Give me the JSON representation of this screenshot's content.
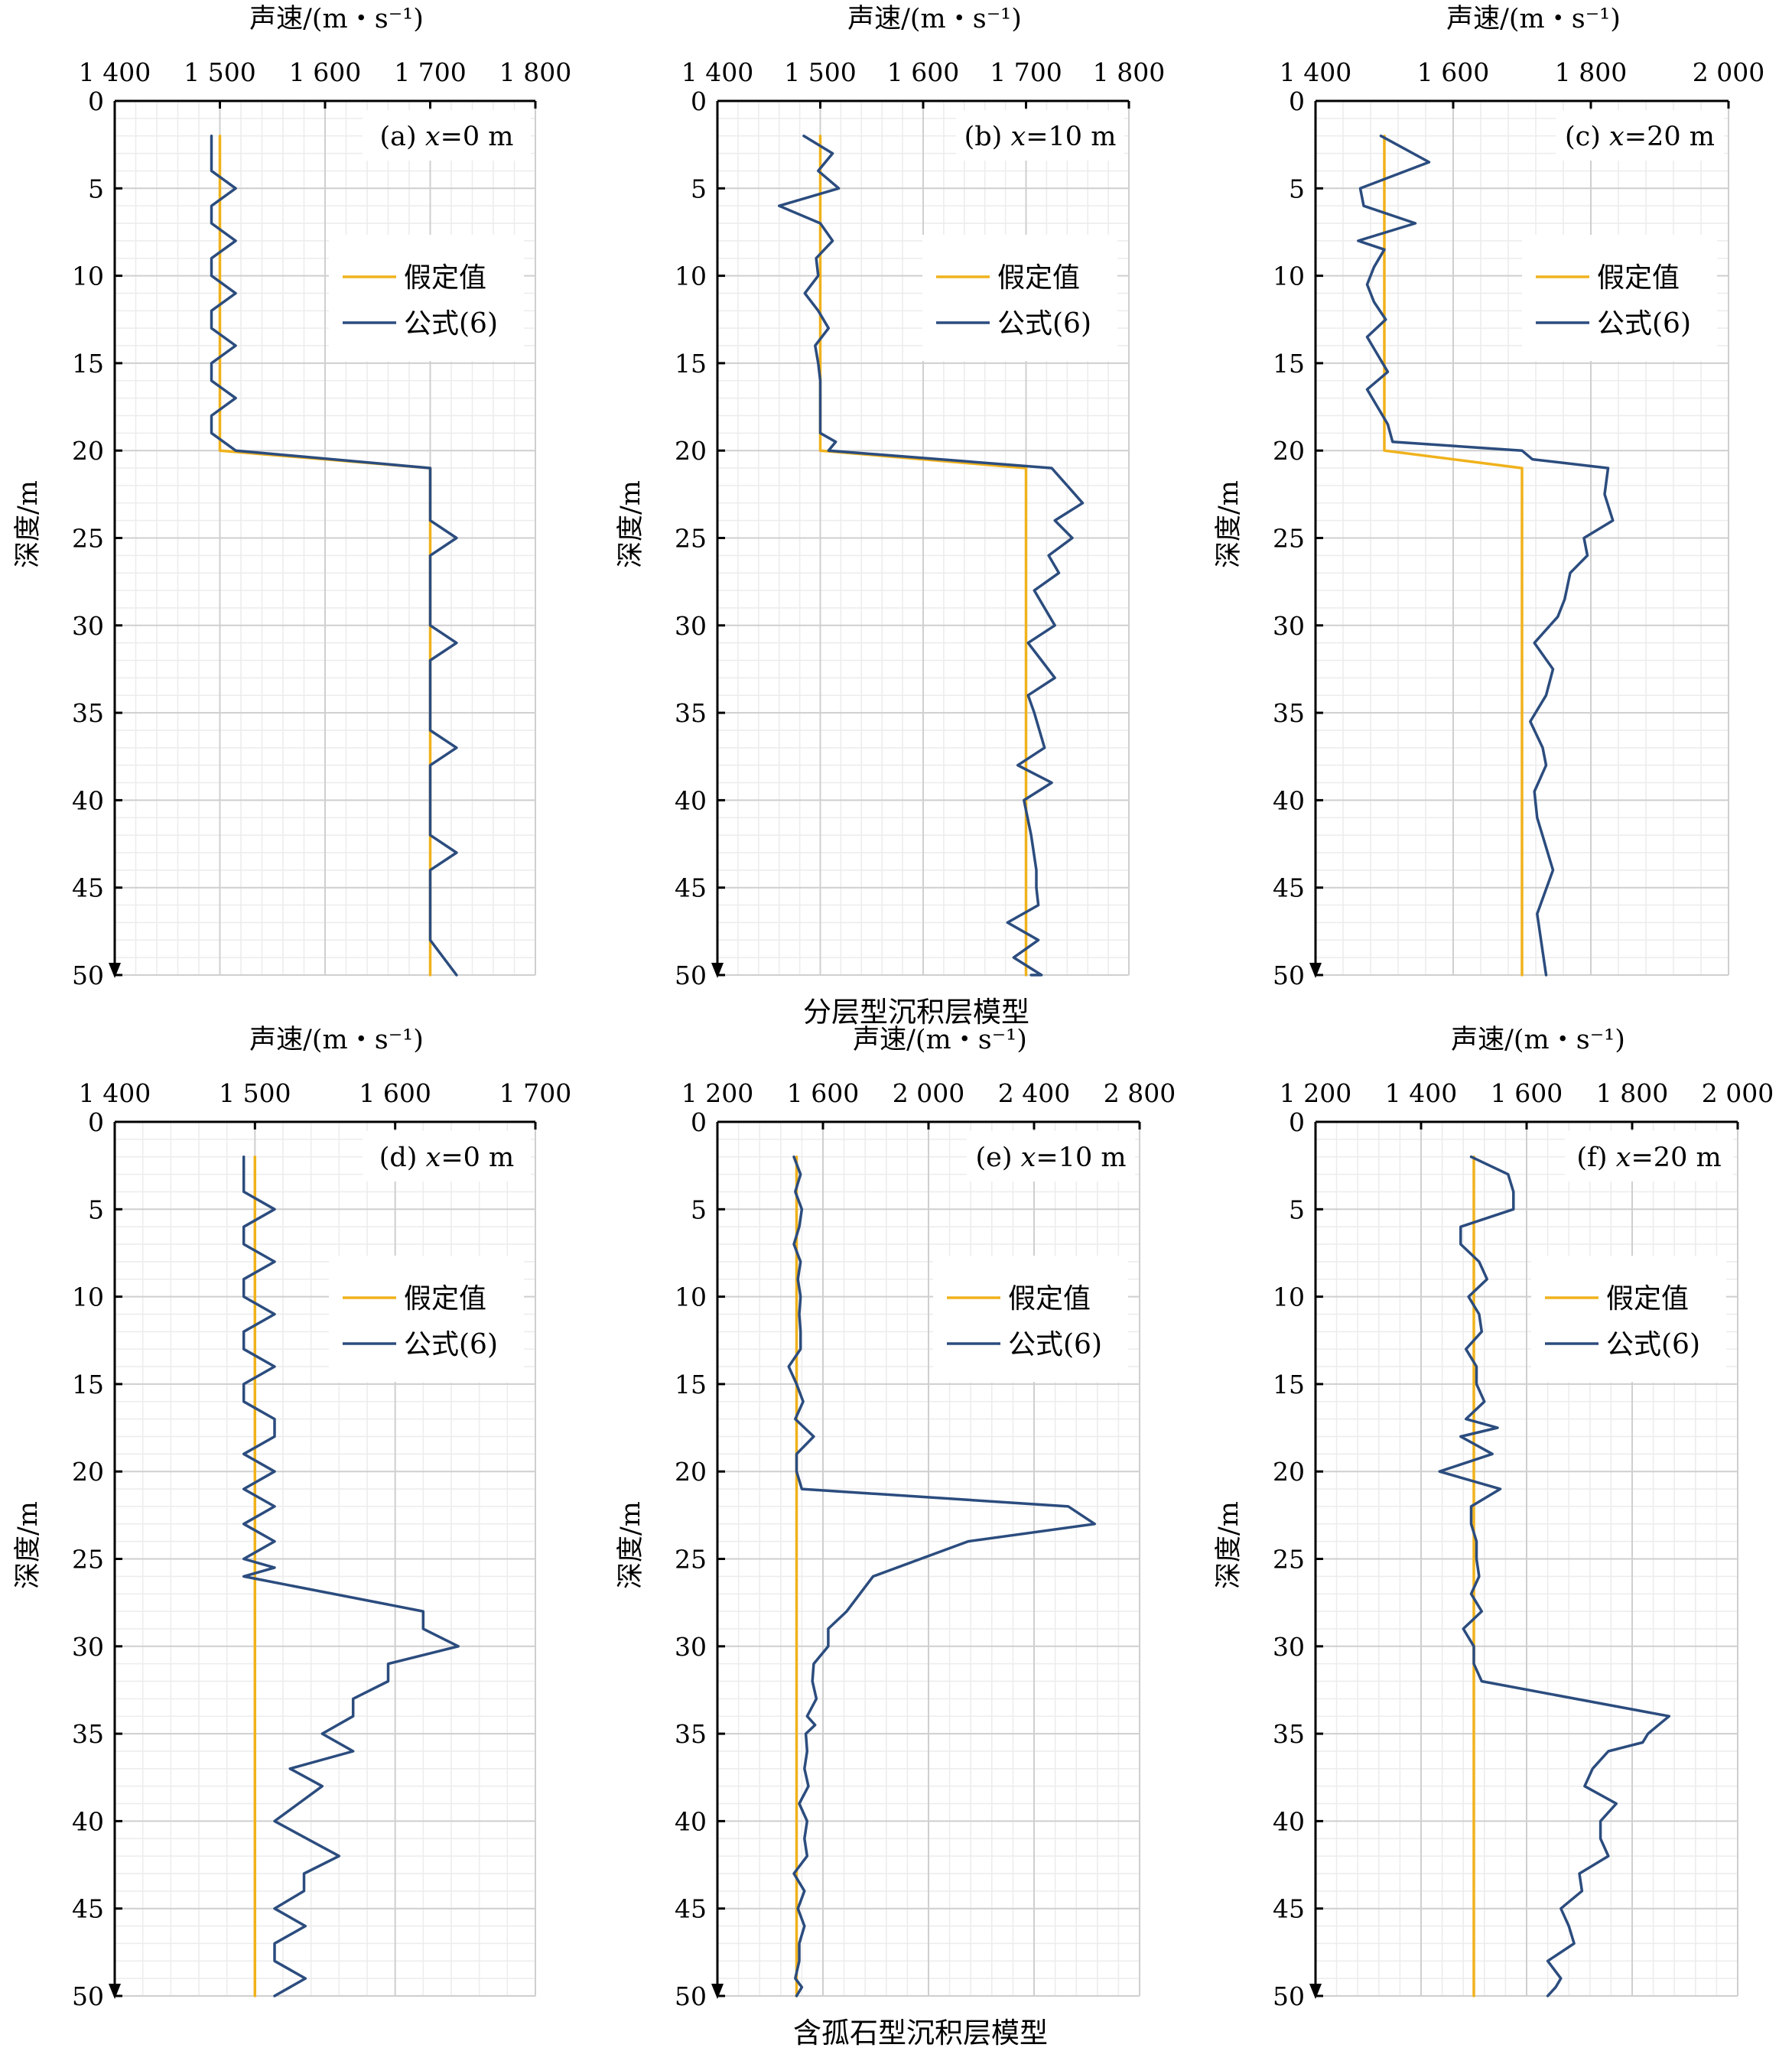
{
  "captions": {
    "top": "分层型沉积层模型",
    "bottom": "含孤石型沉积层模型"
  },
  "colors": {
    "assumed": "#f0b21c",
    "formula": "#2b4c7e",
    "grid_major": "#cfcfcf",
    "grid_minor": "#ececec",
    "axis": "#000000"
  },
  "chart_data": [
    {
      "type": "line",
      "panel_label": "(a)",
      "panel_var": "x",
      "panel_value": "=0 m",
      "xlabel": "声速/(m・s⁻¹)",
      "ylabel": "深度/m",
      "xlim": [
        1400,
        1800
      ],
      "xticks": [
        1400,
        1500,
        1600,
        1700,
        1800
      ],
      "xtick_labels": [
        "1 400",
        "1 500",
        "1 600",
        "1 700",
        "1 800"
      ],
      "ylim": [
        0,
        50
      ],
      "yticks": [
        0,
        5,
        10,
        15,
        20,
        25,
        30,
        35,
        40,
        45,
        50
      ],
      "ytick_labels": [
        "0",
        "5",
        "10",
        "15",
        "20",
        "25",
        "30",
        "35",
        "40",
        "45",
        "50"
      ],
      "grid": true,
      "legend_position": "upper-right",
      "series": [
        {
          "name": "假定值",
          "key": "assumed",
          "x": [
            1500,
            1500,
            1700,
            1700
          ],
          "y": [
            2,
            20,
            21,
            50
          ]
        },
        {
          "name": "公式(6)",
          "key": "formula",
          "x": [
            1492,
            1492,
            1492,
            1515,
            1492,
            1492,
            1515,
            1492,
            1492,
            1515,
            1492,
            1492,
            1515,
            1492,
            1492,
            1515,
            1492,
            1492,
            1515,
            1700,
            1700,
            1700,
            1700,
            1725,
            1700,
            1700,
            1700,
            1700,
            1700,
            1725,
            1700,
            1700,
            1700,
            1700,
            1700,
            1725,
            1700,
            1700,
            1700,
            1700,
            1700,
            1725,
            1700,
            1700,
            1700,
            1700,
            1700,
            1725
          ],
          "y": [
            2,
            3,
            4,
            5,
            6,
            7,
            8,
            9,
            10,
            11,
            12,
            13,
            14,
            15,
            16,
            17,
            18,
            19,
            20,
            21,
            22,
            23,
            24,
            25,
            26,
            27,
            28,
            29,
            30,
            31,
            32,
            33,
            34,
            35,
            36,
            37,
            38,
            39,
            40,
            41,
            42,
            43,
            44,
            45,
            46,
            47,
            48,
            50
          ]
        }
      ]
    },
    {
      "type": "line",
      "panel_label": "(b)",
      "panel_var": "x",
      "panel_value": "=10 m",
      "xlabel": "声速/(m・s⁻¹)",
      "ylabel": "深度/m",
      "xlim": [
        1400,
        1800
      ],
      "xticks": [
        1400,
        1500,
        1600,
        1700,
        1800
      ],
      "xtick_labels": [
        "1 400",
        "1 500",
        "1 600",
        "1 700",
        "1 800"
      ],
      "ylim": [
        0,
        50
      ],
      "yticks": [
        0,
        5,
        10,
        15,
        20,
        25,
        30,
        35,
        40,
        45,
        50
      ],
      "ytick_labels": [
        "0",
        "5",
        "10",
        "15",
        "20",
        "25",
        "30",
        "35",
        "40",
        "45",
        "50"
      ],
      "grid": true,
      "legend_position": "upper-right",
      "series": [
        {
          "name": "假定值",
          "key": "assumed",
          "x": [
            1500,
            1500,
            1700,
            1700
          ],
          "y": [
            2,
            20,
            21,
            50
          ]
        },
        {
          "name": "公式(6)",
          "key": "formula",
          "x": [
            1484,
            1512,
            1498,
            1518,
            1460,
            1500,
            1512,
            1496,
            1498,
            1485,
            1498,
            1508,
            1495,
            1498,
            1500,
            1500,
            1500,
            1500,
            1515,
            1508,
            1725,
            1740,
            1755,
            1728,
            1745,
            1722,
            1732,
            1708,
            1728,
            1702,
            1715,
            1728,
            1702,
            1708,
            1718,
            1692,
            1725,
            1698,
            1705,
            1710,
            1710,
            1712,
            1682,
            1712,
            1688,
            1715,
            1705
          ],
          "y": [
            2,
            3,
            4,
            5,
            6,
            7,
            8,
            9,
            10,
            11,
            12,
            13,
            14,
            15,
            16,
            17,
            18,
            19,
            19.5,
            20,
            21,
            22,
            23,
            24,
            25,
            26,
            27,
            28,
            30,
            31,
            32,
            33,
            34,
            35,
            37,
            38,
            39,
            40,
            42,
            44,
            45,
            46,
            47,
            48,
            49,
            50,
            50
          ]
        }
      ]
    },
    {
      "type": "line",
      "panel_label": "(c)",
      "panel_var": "x",
      "panel_value": "=20 m",
      "xlabel": "声速/(m・s⁻¹)",
      "ylabel": "深度/m",
      "xlim": [
        1400,
        2000
      ],
      "xticks": [
        1400,
        1600,
        1800,
        2000
      ],
      "xtick_labels": [
        "1 400",
        "1 600",
        "1 800",
        "2 000"
      ],
      "ylim": [
        0,
        50
      ],
      "yticks": [
        0,
        5,
        10,
        15,
        20,
        25,
        30,
        35,
        40,
        45,
        50
      ],
      "ytick_labels": [
        "0",
        "5",
        "10",
        "15",
        "20",
        "25",
        "30",
        "35",
        "40",
        "45",
        "50"
      ],
      "grid": true,
      "legend_position": "upper-right",
      "series": [
        {
          "name": "假定值",
          "key": "assumed",
          "x": [
            1500,
            1500,
            1700,
            1700
          ],
          "y": [
            2,
            20,
            21,
            50
          ]
        },
        {
          "name": "公式(6)",
          "key": "formula",
          "x": [
            1495,
            1565,
            1465,
            1470,
            1545,
            1462,
            1500,
            1485,
            1475,
            1485,
            1502,
            1475,
            1490,
            1505,
            1475,
            1490,
            1505,
            1512,
            1700,
            1715,
            1825,
            1820,
            1832,
            1790,
            1795,
            1770,
            1762,
            1752,
            1718,
            1745,
            1735,
            1712,
            1730,
            1735,
            1718,
            1722,
            1745,
            1722,
            1735
          ],
          "y": [
            2,
            3.5,
            5,
            6,
            7,
            8,
            8.5,
            9.5,
            10.5,
            11.5,
            12.5,
            13.5,
            14.5,
            15.5,
            16.5,
            17.5,
            18.5,
            19.5,
            20,
            20.5,
            21,
            22.5,
            24,
            25,
            26,
            27,
            28.5,
            29.5,
            31,
            32.5,
            34,
            35.5,
            37,
            38,
            39.5,
            41,
            44,
            46.5,
            50
          ]
        }
      ]
    },
    {
      "type": "line",
      "panel_label": "(d)",
      "panel_var": "x",
      "panel_value": "=0 m",
      "xlabel": "声速/(m・s⁻¹)",
      "ylabel": "深度/m",
      "xlim": [
        1400,
        1700
      ],
      "xticks": [
        1400,
        1500,
        1600,
        1700
      ],
      "xtick_labels": [
        "1 400",
        "1 500",
        "1 600",
        "1 700"
      ],
      "ylim": [
        0,
        50
      ],
      "yticks": [
        0,
        5,
        10,
        15,
        20,
        25,
        30,
        35,
        40,
        45,
        50
      ],
      "ytick_labels": [
        "0",
        "5",
        "10",
        "15",
        "20",
        "25",
        "30",
        "35",
        "40",
        "45",
        "50"
      ],
      "grid": true,
      "legend_position": "upper-right",
      "series": [
        {
          "name": "假定值",
          "key": "assumed",
          "x": [
            1500,
            1500
          ],
          "y": [
            2,
            50
          ]
        },
        {
          "name": "公式(6)",
          "key": "formula",
          "x": [
            1492,
            1492,
            1492,
            1514,
            1492,
            1492,
            1514,
            1492,
            1492,
            1514,
            1492,
            1492,
            1514,
            1492,
            1492,
            1514,
            1514,
            1492,
            1514,
            1492,
            1514,
            1492,
            1514,
            1492,
            1514,
            1492,
            1620,
            1620,
            1645,
            1595,
            1595,
            1570,
            1570,
            1548,
            1570,
            1525,
            1548,
            1514,
            1560,
            1535,
            1535,
            1514,
            1536,
            1514,
            1514,
            1536,
            1514
          ],
          "y": [
            2,
            3,
            4,
            5,
            6,
            7,
            8,
            9,
            10,
            11,
            12,
            13,
            14,
            15,
            16,
            17,
            18,
            19,
            20,
            21,
            22,
            23,
            24,
            25,
            25.5,
            26,
            28,
            29,
            30,
            31,
            32,
            33,
            34,
            35,
            36,
            37,
            38,
            40,
            42,
            43,
            44,
            45,
            46,
            47,
            48,
            49,
            50
          ]
        }
      ]
    },
    {
      "type": "line",
      "panel_label": "(e)",
      "panel_var": "x",
      "panel_value": "=10 m",
      "xlabel": "声速/(m・s⁻¹)",
      "ylabel": "深度/m",
      "xlim": [
        1200,
        2800
      ],
      "xticks": [
        1200,
        1600,
        2000,
        2400,
        2800
      ],
      "xtick_labels": [
        "1 200",
        "1 600",
        "2 000",
        "2 400",
        "2 800"
      ],
      "ylim": [
        0,
        50
      ],
      "yticks": [
        0,
        5,
        10,
        15,
        20,
        25,
        30,
        35,
        40,
        45,
        50
      ],
      "ytick_labels": [
        "0",
        "5",
        "10",
        "15",
        "20",
        "25",
        "30",
        "35",
        "40",
        "45",
        "50"
      ],
      "grid": true,
      "legend_position": "upper-right",
      "series": [
        {
          "name": "假定值",
          "key": "assumed",
          "x": [
            1500,
            1500
          ],
          "y": [
            2,
            50
          ]
        },
        {
          "name": "公式(6)",
          "key": "formula",
          "x": [
            1490,
            1515,
            1495,
            1520,
            1510,
            1490,
            1515,
            1505,
            1515,
            1510,
            1515,
            1515,
            1470,
            1500,
            1525,
            1495,
            1565,
            1500,
            1500,
            1520,
            2530,
            2630,
            2150,
            1790,
            1690,
            1620,
            1620,
            1565,
            1560,
            1575,
            1540,
            1570,
            1535,
            1540,
            1530,
            1545,
            1510,
            1540,
            1530,
            1540,
            1490,
            1530,
            1505,
            1530,
            1510,
            1510,
            1495,
            1520,
            1500,
            1500
          ],
          "y": [
            2,
            3,
            4,
            5,
            6,
            7,
            8,
            9,
            10,
            11,
            12,
            13,
            14,
            15,
            16,
            17,
            18,
            19,
            20,
            21,
            22,
            23,
            24,
            26,
            28,
            29,
            30,
            31,
            32,
            33,
            34,
            34.5,
            35,
            36,
            37,
            38,
            39,
            40,
            41,
            42,
            43,
            44,
            45,
            46,
            47,
            48,
            49,
            49.5,
            50,
            50
          ]
        }
      ]
    },
    {
      "type": "line",
      "panel_label": "(f)",
      "panel_var": "x",
      "panel_value": "=20 m",
      "xlabel": "声速/(m・s⁻¹)",
      "ylabel": "深度/m",
      "xlim": [
        1200,
        2000
      ],
      "xticks": [
        1200,
        1400,
        1600,
        1800,
        2000
      ],
      "xtick_labels": [
        "1 200",
        "1 400",
        "1 600",
        "1 800",
        "2 000"
      ],
      "ylim": [
        0,
        50
      ],
      "yticks": [
        0,
        5,
        10,
        15,
        20,
        25,
        30,
        35,
        40,
        45,
        50
      ],
      "ytick_labels": [
        "0",
        "5",
        "10",
        "15",
        "20",
        "25",
        "30",
        "35",
        "40",
        "45",
        "50"
      ],
      "grid": true,
      "legend_position": "upper-right",
      "series": [
        {
          "name": "假定值",
          "key": "assumed",
          "x": [
            1500,
            1500
          ],
          "y": [
            2,
            50
          ]
        },
        {
          "name": "公式(6)",
          "key": "formula",
          "x": [
            1495,
            1565,
            1575,
            1575,
            1475,
            1475,
            1510,
            1525,
            1490,
            1510,
            1515,
            1485,
            1505,
            1505,
            1520,
            1485,
            1545,
            1475,
            1535,
            1435,
            1550,
            1495,
            1495,
            1505,
            1505,
            1510,
            1495,
            1515,
            1480,
            1500,
            1500,
            1515,
            1870,
            1830,
            1820,
            1755,
            1725,
            1710,
            1770,
            1740,
            1740,
            1755,
            1700,
            1705,
            1665,
            1680,
            1690,
            1640,
            1665,
            1655,
            1640
          ],
          "y": [
            2,
            3,
            4,
            5,
            6,
            7,
            8,
            9,
            10,
            11,
            12,
            13,
            14,
            15,
            16,
            17,
            17.5,
            18,
            19,
            20,
            21,
            22,
            23,
            24,
            25,
            26,
            27,
            28,
            29,
            30,
            31,
            32,
            34,
            35,
            35.5,
            36,
            37,
            38,
            39,
            40,
            41,
            42,
            43,
            44,
            45,
            46,
            47,
            48,
            49,
            49.5,
            50
          ]
        }
      ]
    }
  ]
}
